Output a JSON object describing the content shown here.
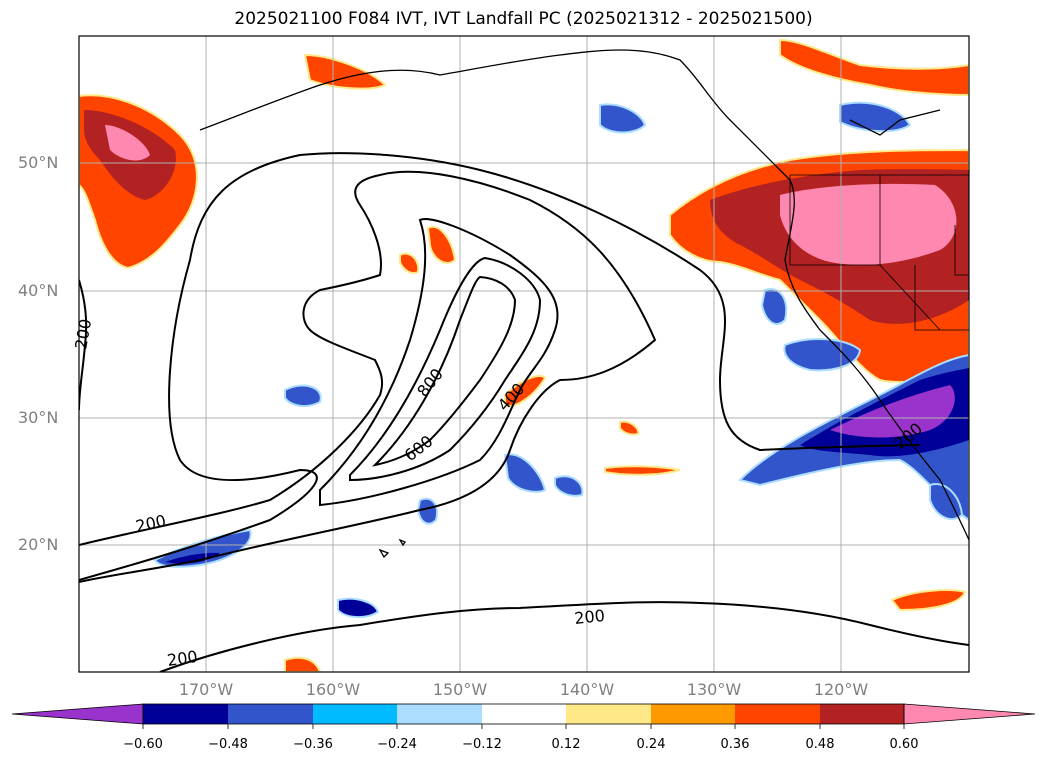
{
  "title": "2025021100 F084 IVT, IVT Landfall PC (2025021312 - 2025021500)",
  "map": {
    "lat_ticks": [
      "50°N",
      "40°N",
      "30°N",
      "20°N"
    ],
    "lon_ticks": [
      "170°W",
      "160°W",
      "150°W",
      "140°W",
      "130°W",
      "120°W"
    ],
    "contour_labels": [
      "200",
      "200",
      "200",
      "200",
      "400",
      "600",
      "800",
      "200"
    ],
    "grid": true
  },
  "colorbar": {
    "labels": [
      "−0.60",
      "−0.48",
      "−0.36",
      "−0.24",
      "−0.12",
      "0.12",
      "0.24",
      "0.36",
      "0.48",
      "0.60"
    ],
    "colors": [
      "#9933cc",
      "#000099",
      "#3355cc",
      "#00bbff",
      "#aaddff",
      "#ffffff",
      "#ffe888",
      "#ff9900",
      "#ff4400",
      "#b22222",
      "#ff88b0"
    ],
    "extend": "both"
  }
}
